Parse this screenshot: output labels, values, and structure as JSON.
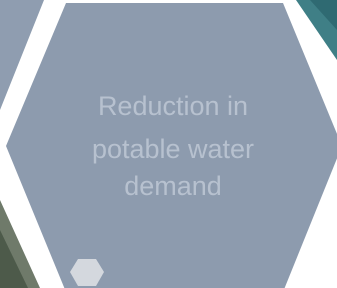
{
  "hexagon": {
    "label_lines": [
      "Reduction in",
      "potable water",
      "demand"
    ]
  }
}
